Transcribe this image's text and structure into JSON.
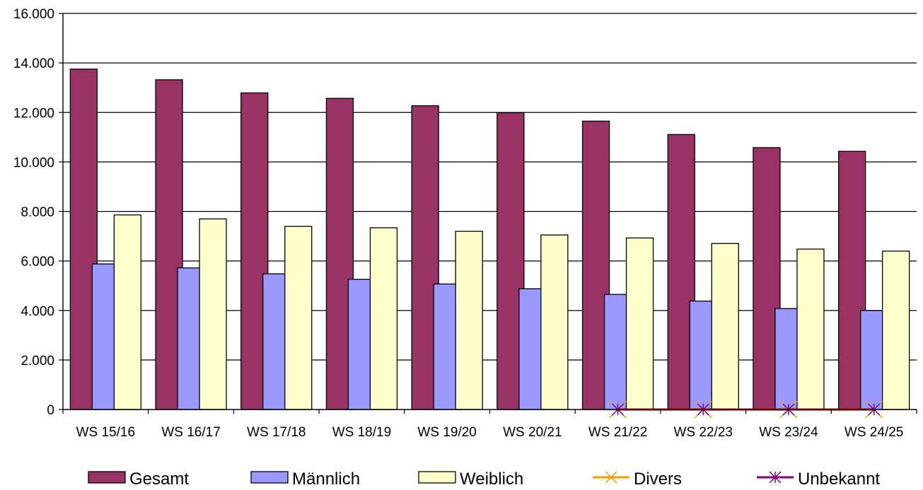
{
  "chart_data": {
    "type": "bar",
    "categories": [
      "WS 15/16",
      "WS 16/17",
      "WS 17/18",
      "WS 18/19",
      "WS 19/20",
      "WS 20/21",
      "WS 21/22",
      "WS 22/23",
      "WS 23/24",
      "WS 24/25"
    ],
    "series": [
      {
        "name": "Gesamt",
        "kind": "bar",
        "color": "#993366",
        "values": [
          13750,
          13320,
          12790,
          12570,
          12270,
          11990,
          11650,
          11110,
          10580,
          10430
        ]
      },
      {
        "name": "Männlich",
        "kind": "bar",
        "color": "#9999ff",
        "values": [
          5880,
          5720,
          5480,
          5260,
          5070,
          4880,
          4650,
          4380,
          4080,
          4000
        ]
      },
      {
        "name": "Weiblich",
        "kind": "bar",
        "color": "#ffffcc",
        "values": [
          7860,
          7700,
          7400,
          7340,
          7200,
          7050,
          6930,
          6710,
          6480,
          6400
        ]
      },
      {
        "name": "Divers",
        "kind": "line",
        "color": "#ff9900",
        "marker": "x",
        "values": [
          null,
          null,
          null,
          null,
          null,
          null,
          0,
          0,
          0,
          0
        ]
      },
      {
        "name": "Unbekannt",
        "kind": "line",
        "color": "#800080",
        "marker": "star",
        "values": [
          null,
          null,
          null,
          null,
          null,
          null,
          0,
          0,
          0,
          0
        ]
      }
    ],
    "extra_line": {
      "color": "#cc0000",
      "values": [
        null,
        null,
        null,
        null,
        null,
        null,
        0,
        0,
        0,
        0
      ]
    },
    "ylim": [
      0,
      16000
    ],
    "yticks": [
      0,
      2000,
      4000,
      6000,
      8000,
      10000,
      12000,
      14000,
      16000
    ],
    "ytick_labels": [
      "0",
      "2.000",
      "4.000",
      "6.000",
      "8.000",
      "10.000",
      "12.000",
      "14.000",
      "16.000"
    ],
    "grid": true,
    "legend_position": "bottom"
  }
}
